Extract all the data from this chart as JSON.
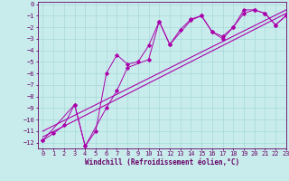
{
  "background_color": "#c8ecec",
  "grid_color": "#a8d8d8",
  "line_color": "#aa00aa",
  "spine_color": "#660066",
  "xlim": [
    -0.5,
    23
  ],
  "ylim": [
    -12.5,
    0.2
  ],
  "xticks": [
    0,
    1,
    2,
    3,
    4,
    5,
    6,
    7,
    8,
    9,
    10,
    11,
    12,
    13,
    14,
    15,
    16,
    17,
    18,
    19,
    20,
    21,
    22,
    23
  ],
  "yticks": [
    0,
    -1,
    -2,
    -3,
    -4,
    -5,
    -6,
    -7,
    -8,
    -9,
    -10,
    -11,
    -12
  ],
  "xlabel": "Windchill (Refroidissement éolien,°C)",
  "xlabel_fontsize": 5.5,
  "tick_fontsize": 5.0,
  "series1_x": [
    0,
    1,
    2,
    3,
    4,
    5,
    6,
    7,
    8,
    9,
    10,
    11,
    12,
    13,
    14,
    15,
    16,
    17,
    18,
    19,
    20,
    21,
    22,
    23
  ],
  "series1_y": [
    -11.8,
    -11.2,
    -10.5,
    -8.7,
    -12.3,
    -11.0,
    -6.0,
    -4.4,
    -5.2,
    -5.0,
    -3.6,
    -1.5,
    -3.5,
    -2.2,
    -1.3,
    -1.0,
    -2.4,
    -2.8,
    -2.0,
    -0.5,
    -0.5,
    -0.8,
    -1.8,
    -1.0
  ],
  "series2_x": [
    0,
    3,
    4,
    6,
    7,
    8,
    10,
    11,
    12,
    14,
    15,
    16,
    17,
    18,
    19,
    20,
    21,
    22,
    23
  ],
  "series2_y": [
    -11.8,
    -8.7,
    -12.3,
    -9.0,
    -7.5,
    -5.5,
    -4.8,
    -1.5,
    -3.5,
    -1.4,
    -1.0,
    -2.4,
    -3.0,
    -2.0,
    -0.8,
    -0.5,
    -0.8,
    -1.8,
    -1.0
  ],
  "series3_x": [
    0,
    23
  ],
  "series3_y": [
    -11.5,
    -0.8
  ],
  "series4_x": [
    0,
    23
  ],
  "series4_y": [
    -11.0,
    -0.5
  ]
}
